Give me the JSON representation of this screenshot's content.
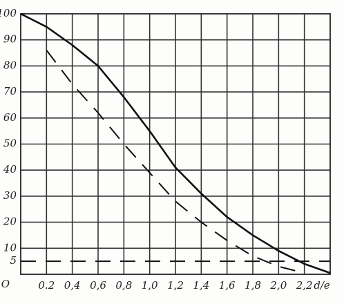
{
  "chart_data": {
    "type": "line",
    "x": [
      0,
      0.2,
      0.4,
      0.6,
      0.8,
      1.0,
      1.2,
      1.4,
      1.6,
      1.8,
      2.0,
      2.2,
      2.4
    ],
    "series": [
      {
        "color": "#111",
        "style": "solid",
        "values": [
          100,
          95,
          88,
          80,
          68,
          55,
          41,
          31,
          22,
          15,
          9,
          4,
          0.5
        ]
      },
      {
        "color": "#111",
        "style": "dashed",
        "values": [
          null,
          86,
          73,
          62,
          50,
          39,
          28,
          20,
          13,
          7,
          3,
          0.5,
          null
        ]
      },
      {
        "color": "#111",
        "style": "dashed",
        "values": [
          5,
          5,
          5,
          5,
          5,
          5,
          5,
          5,
          5,
          5,
          5,
          5,
          5
        ]
      }
    ],
    "xlabel": "d/e",
    "xlim": [
      0,
      2.4
    ],
    "ylim": [
      0,
      100
    ],
    "xticks": [
      0.2,
      {
        "value": 0.4,
        "label": "0,4"
      },
      {
        "value": 0.6,
        "label": "0,6"
      },
      {
        "value": 0.8,
        "label": "0,8"
      },
      {
        "value": 1.0,
        "label": "1,0"
      },
      {
        "value": 1.2,
        "label": "1,2"
      },
      {
        "value": 1.4,
        "label": "1,4"
      },
      {
        "value": 1.6,
        "label": "1,6"
      },
      {
        "value": 1.8,
        "label": "1,8"
      },
      {
        "value": 2.0,
        "label": "2,0"
      },
      {
        "value": 2.2,
        "label": "2,2"
      }
    ],
    "yticks": [
      {
        "value": 0,
        "label": "O"
      },
      5,
      10,
      20,
      30,
      40,
      50,
      60,
      70,
      80,
      90,
      100
    ],
    "grid": true
  }
}
